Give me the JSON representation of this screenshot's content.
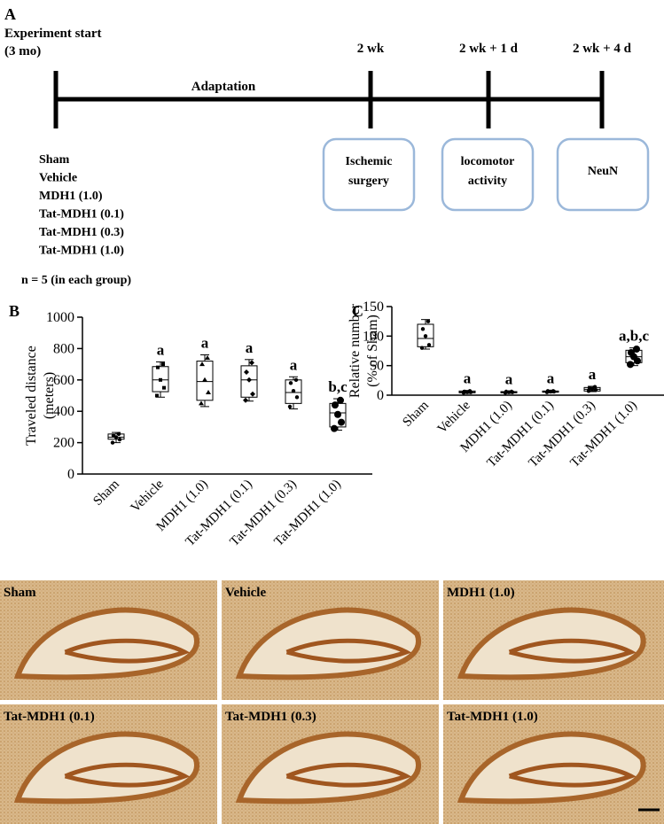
{
  "panel_a": {
    "label": "A",
    "start": [
      "Experiment start",
      "(3 mo)"
    ],
    "times": [
      "2 wk",
      "2 wk + 1 d",
      "2 wk + 4 d"
    ],
    "phase": "Adaptation",
    "steps": [
      "Ischemic\nsurgery",
      "locomotor\nactivity",
      "NeuN"
    ],
    "groups": [
      "Sham",
      "Vehicle",
      "MDH1 (1.0)",
      "Tat-MDH1 (0.1)",
      "Tat-MDH1 (0.3)",
      "Tat-MDH1 (1.0)"
    ],
    "n_note": "n = 5 (in each group)"
  },
  "chart_data": [
    {
      "type": "box",
      "label": "B",
      "ylabel": [
        "Traveled distance",
        "(meters)"
      ],
      "categories": [
        "Sham",
        "Vehicle",
        "MDH1 (1.0)",
        "Tat-MDH1 (0.1)",
        "Tat-MDH1 (0.3)",
        "Tat-MDH1 (1.0)"
      ],
      "ylim": [
        0,
        1000
      ],
      "yticks": [
        0,
        200,
        400,
        600,
        800,
        1000
      ],
      "markers": [
        "circle",
        "square",
        "triangle",
        "diamond",
        "circle",
        "bigcircle"
      ],
      "boxes": [
        {
          "min": 200,
          "q1": 222,
          "median": 235,
          "q3": 255,
          "max": 265,
          "points": [
            200,
            220,
            235,
            245,
            255
          ]
        },
        {
          "min": 490,
          "q1": 525,
          "median": 600,
          "q3": 685,
          "max": 715,
          "points": [
            500,
            550,
            600,
            680,
            700
          ]
        },
        {
          "min": 430,
          "q1": 470,
          "median": 590,
          "q3": 720,
          "max": 760,
          "points": [
            450,
            520,
            600,
            700,
            740
          ]
        },
        {
          "min": 465,
          "q1": 490,
          "median": 600,
          "q3": 690,
          "max": 730,
          "points": [
            470,
            510,
            600,
            650,
            710
          ]
        },
        {
          "min": 415,
          "q1": 450,
          "median": 520,
          "q3": 600,
          "max": 620,
          "points": [
            430,
            490,
            530,
            580,
            600
          ]
        },
        {
          "min": 280,
          "q1": 300,
          "median": 390,
          "q3": 450,
          "max": 480,
          "points": [
            290,
            330,
            380,
            440,
            470
          ]
        }
      ],
      "sig": [
        null,
        "a",
        "a",
        "a",
        "a",
        "b,c"
      ]
    },
    {
      "type": "box",
      "label": "C",
      "ylabel": [
        "Relative number",
        "(% of Sham)"
      ],
      "categories": [
        "Sham",
        "Vehicle",
        "MDH1 (1.0)",
        "Tat-MDH1 (0.1)",
        "Tat-MDH1 (0.3)",
        "Tat-MDH1 (1.0)"
      ],
      "ylim": [
        0,
        150
      ],
      "yticks": [
        0,
        50,
        100,
        150
      ],
      "markers": [
        "circle",
        "circle",
        "circle",
        "circle",
        "circle",
        "bigcircle"
      ],
      "boxes": [
        {
          "min": 78,
          "q1": 82,
          "median": 96,
          "q3": 120,
          "max": 128,
          "points": [
            80,
            85,
            100,
            112,
            125
          ]
        },
        {
          "min": 3,
          "q1": 4,
          "median": 5,
          "q3": 7,
          "max": 8,
          "points": [
            4,
            5,
            5,
            6,
            7
          ]
        },
        {
          "min": 3,
          "q1": 4,
          "median": 5,
          "q3": 6,
          "max": 7,
          "points": [
            4,
            5,
            5,
            6,
            6
          ]
        },
        {
          "min": 4,
          "q1": 5,
          "median": 6,
          "q3": 7,
          "max": 8,
          "points": [
            5,
            6,
            6,
            7,
            7
          ]
        },
        {
          "min": 6,
          "q1": 7,
          "median": 10,
          "q3": 13,
          "max": 15,
          "points": [
            7,
            9,
            10,
            12,
            14
          ]
        },
        {
          "min": 50,
          "q1": 55,
          "median": 65,
          "q3": 76,
          "max": 80,
          "points": [
            52,
            58,
            65,
            72,
            78
          ]
        }
      ],
      "sig": [
        null,
        "a",
        "a",
        "a",
        "a",
        "a,b,c"
      ]
    }
  ],
  "panel_d": {
    "images": [
      "Sham",
      "Vehicle",
      "MDH1 (1.0)",
      "Tat-MDH1 (0.1)",
      "Tat-MDH1 (0.3)",
      "Tat-MDH1 (1.0)"
    ]
  }
}
